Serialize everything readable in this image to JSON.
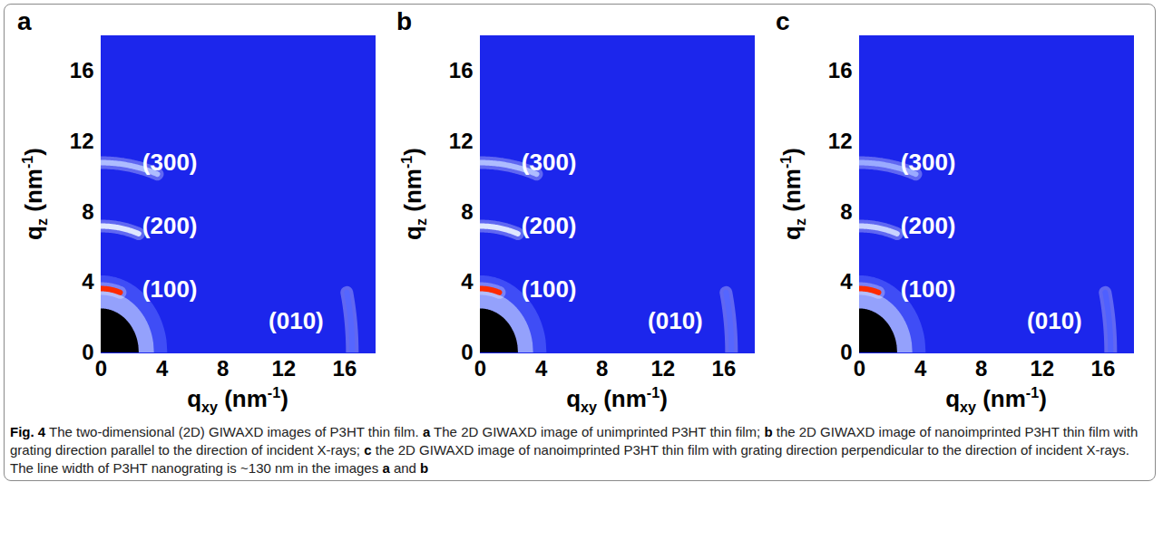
{
  "chart_data": [
    {
      "type": "diffraction",
      "panel": "a",
      "x_label": [
        "q",
        {
          "sub": "xy"
        },
        " (nm",
        {
          "sup": "-1"
        },
        ")"
      ],
      "y_label": [
        "q",
        {
          "sub": "z"
        },
        " (nm",
        {
          "sup": "-1"
        },
        ")"
      ],
      "xlim": [
        0,
        18
      ],
      "ylim": [
        0,
        18
      ],
      "xticks": [
        0,
        4,
        8,
        12,
        16
      ],
      "yticks": [
        0,
        4,
        8,
        12,
        16
      ],
      "beam_stop_radius": 2.5,
      "peaks": [
        {
          "label": "(100)",
          "q": 3.65,
          "along": "qz",
          "color": "#ff2a00",
          "label_x": 2.7,
          "label_y": 3.6
        },
        {
          "label": "(200)",
          "q": 7.2,
          "along": "qz",
          "color": "#dfe6ff",
          "label_x": 2.7,
          "label_y": 7.2
        },
        {
          "label": "(300)",
          "q": 10.8,
          "along": "qz",
          "color": "#aebcff",
          "label_x": 2.7,
          "label_y": 10.8
        },
        {
          "label": "(010)",
          "q": 16.5,
          "along": "qxy",
          "color": "#5566ff",
          "label_x": 11,
          "label_y": 1.8
        }
      ]
    },
    {
      "type": "diffraction",
      "panel": "b",
      "x_label": [
        "q",
        {
          "sub": "xy"
        },
        " (nm",
        {
          "sup": "-1"
        },
        ")"
      ],
      "y_label": [
        "q",
        {
          "sub": "z"
        },
        " (nm",
        {
          "sup": "-1"
        },
        ")"
      ],
      "xlim": [
        0,
        18
      ],
      "ylim": [
        0,
        18
      ],
      "xticks": [
        0,
        4,
        8,
        12,
        16
      ],
      "yticks": [
        0,
        4,
        8,
        12,
        16
      ],
      "beam_stop_radius": 2.5,
      "peaks": [
        {
          "label": "(100)",
          "q": 3.65,
          "along": "qz",
          "color": "#ff2a00",
          "label_x": 2.7,
          "label_y": 3.6
        },
        {
          "label": "(200)",
          "q": 7.2,
          "along": "qz",
          "color": "#dfe6ff",
          "label_x": 2.7,
          "label_y": 7.2
        },
        {
          "label": "(300)",
          "q": 10.8,
          "along": "qz",
          "color": "#aebcff",
          "label_x": 2.7,
          "label_y": 10.8
        },
        {
          "label": "(010)",
          "q": 16.5,
          "along": "qxy",
          "color": "#5566ff",
          "label_x": 11,
          "label_y": 1.8
        }
      ]
    },
    {
      "type": "diffraction",
      "panel": "c",
      "x_label": [
        "q",
        {
          "sub": "xy"
        },
        " (nm",
        {
          "sup": "-1"
        },
        ")"
      ],
      "y_label": [
        "q",
        {
          "sub": "z"
        },
        " (nm",
        {
          "sup": "-1"
        },
        ")"
      ],
      "xlim": [
        0,
        18
      ],
      "ylim": [
        0,
        18
      ],
      "xticks": [
        0,
        4,
        8,
        12,
        16
      ],
      "yticks": [
        0,
        4,
        8,
        12,
        16
      ],
      "beam_stop_radius": 2.5,
      "peaks": [
        {
          "label": "(100)",
          "q": 3.65,
          "along": "qz",
          "color": "#ff2a00",
          "label_x": 2.7,
          "label_y": 3.6
        },
        {
          "label": "(200)",
          "q": 7.2,
          "along": "qz",
          "color": "#c8d2ff",
          "label_x": 2.7,
          "label_y": 7.2
        },
        {
          "label": "(300)",
          "q": 10.8,
          "along": "qz",
          "color": "#9aaaff",
          "label_x": 2.7,
          "label_y": 10.8
        },
        {
          "label": "(010)",
          "q": 16.5,
          "along": "qxy",
          "color": "#4f60ff",
          "label_x": 11,
          "label_y": 1.8
        }
      ]
    }
  ],
  "caption": [
    {
      "text": "Fig. 4",
      "bold": true
    },
    {
      "text": " The two-dimensional (2D) GIWAXD images of P3HT thin film. "
    },
    {
      "text": "a",
      "bold": true
    },
    {
      "text": " The 2D GIWAXD image of unimprinted P3HT thin film; "
    },
    {
      "text": "b",
      "bold": true
    },
    {
      "text": " the 2D GIWAXD image of nanoimprinted P3HT thin film with grating direction parallel to the direction of incident X-rays; "
    },
    {
      "text": "c",
      "bold": true
    },
    {
      "text": " the 2D GIWAXD image of nanoimprinted P3HT thin film with grating direction perpendicular to the direction of incident X-rays. The line width of P3HT nanograting is ~130 nm in the images "
    },
    {
      "text": "a",
      "bold": true
    },
    {
      "text": " and "
    },
    {
      "text": "b",
      "bold": true
    }
  ]
}
